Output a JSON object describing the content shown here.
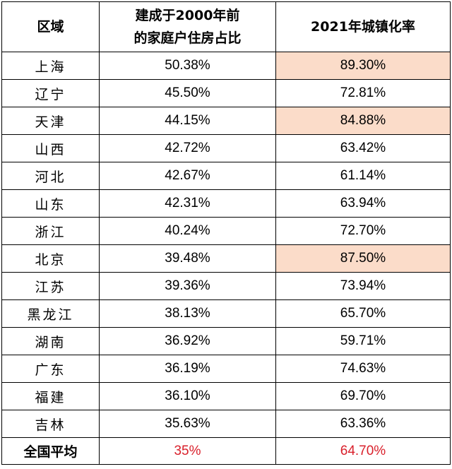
{
  "table": {
    "headers": [
      "区域",
      "建成于2000年前\n的家庭户住房占比",
      "2021年城镇化率"
    ],
    "header_line1": "建成于2000年前",
    "header_line2": "的家庭户住房占比",
    "rows": [
      {
        "region": "上海",
        "pre2000": "50.38%",
        "urbanization": "89.30%",
        "highlight": true
      },
      {
        "region": "辽宁",
        "pre2000": "45.50%",
        "urbanization": "72.81%",
        "highlight": false
      },
      {
        "region": "天津",
        "pre2000": "44.15%",
        "urbanization": "84.88%",
        "highlight": true
      },
      {
        "region": "山西",
        "pre2000": "42.72%",
        "urbanization": "63.42%",
        "highlight": false
      },
      {
        "region": "河北",
        "pre2000": "42.67%",
        "urbanization": "61.14%",
        "highlight": false
      },
      {
        "region": "山东",
        "pre2000": "42.31%",
        "urbanization": "63.94%",
        "highlight": false
      },
      {
        "region": "浙江",
        "pre2000": "40.24%",
        "urbanization": "72.70%",
        "highlight": false
      },
      {
        "region": "北京",
        "pre2000": "39.48%",
        "urbanization": "87.50%",
        "highlight": true
      },
      {
        "region": "江苏",
        "pre2000": "39.36%",
        "urbanization": "73.94%",
        "highlight": false
      },
      {
        "region": "黑龙江",
        "pre2000": "38.13%",
        "urbanization": "65.70%",
        "highlight": false
      },
      {
        "region": "湖南",
        "pre2000": "36.92%",
        "urbanization": "59.71%",
        "highlight": false
      },
      {
        "region": "广东",
        "pre2000": "36.19%",
        "urbanization": "74.63%",
        "highlight": false
      },
      {
        "region": "福建",
        "pre2000": "36.10%",
        "urbanization": "69.70%",
        "highlight": false
      },
      {
        "region": "吉林",
        "pre2000": "35.63%",
        "urbanization": "63.36%",
        "highlight": false
      }
    ],
    "average": {
      "region": "全国平均",
      "pre2000": "35%",
      "urbanization": "64.70%"
    }
  },
  "colors": {
    "highlight_fill": "#fbdcc9",
    "average_value_text": "#d9202b",
    "border": "#000000"
  }
}
